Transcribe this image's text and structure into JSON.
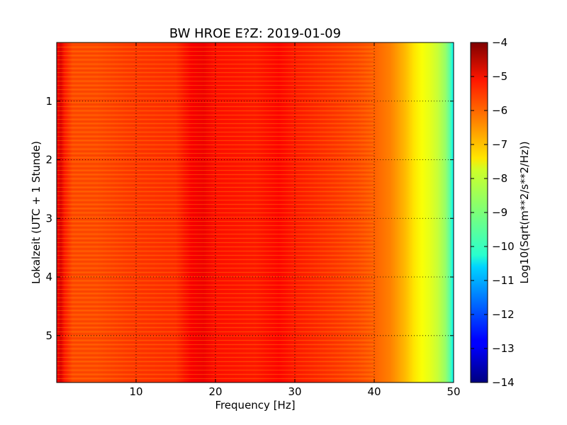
{
  "chart_data": {
    "type": "heatmap",
    "title": "BW HROE E?Z: 2019-01-09",
    "xlabel": "Frequency [Hz]",
    "ylabel": "Lokalzeit (UTC + 1 Stunde)",
    "xlim": [
      0,
      50
    ],
    "ylim": [
      5.8,
      0
    ],
    "x_ticks": [
      10,
      20,
      30,
      40,
      50
    ],
    "y_ticks": [
      1,
      2,
      3,
      4,
      5
    ],
    "grid": true,
    "colormap": "jet",
    "colorbar": {
      "label": "Log10(Sqrt(m**2/s**2/Hz))",
      "range": [
        -14,
        -4
      ],
      "ticks": [
        -4,
        -5,
        -6,
        -7,
        -8,
        -9,
        -10,
        -11,
        -12,
        -13,
        -14
      ]
    },
    "frequency_profile": {
      "frequency_hz": [
        0,
        0.5,
        1,
        2,
        5,
        10,
        15,
        17,
        18.5,
        20,
        25,
        28,
        30,
        35,
        38,
        40,
        42,
        43,
        44,
        45,
        46,
        47,
        48,
        49,
        49.5,
        50
      ],
      "log10_amplitude": [
        -5.3,
        -4.9,
        -5.5,
        -6.0,
        -6.0,
        -5.8,
        -5.7,
        -5.2,
        -5.1,
        -5.4,
        -5.5,
        -5.3,
        -5.5,
        -5.8,
        -6.0,
        -6.2,
        -6.5,
        -6.8,
        -7.1,
        -7.5,
        -7.8,
        -8.0,
        -8.3,
        -8.8,
        -9.3,
        -10.3
      ]
    }
  }
}
